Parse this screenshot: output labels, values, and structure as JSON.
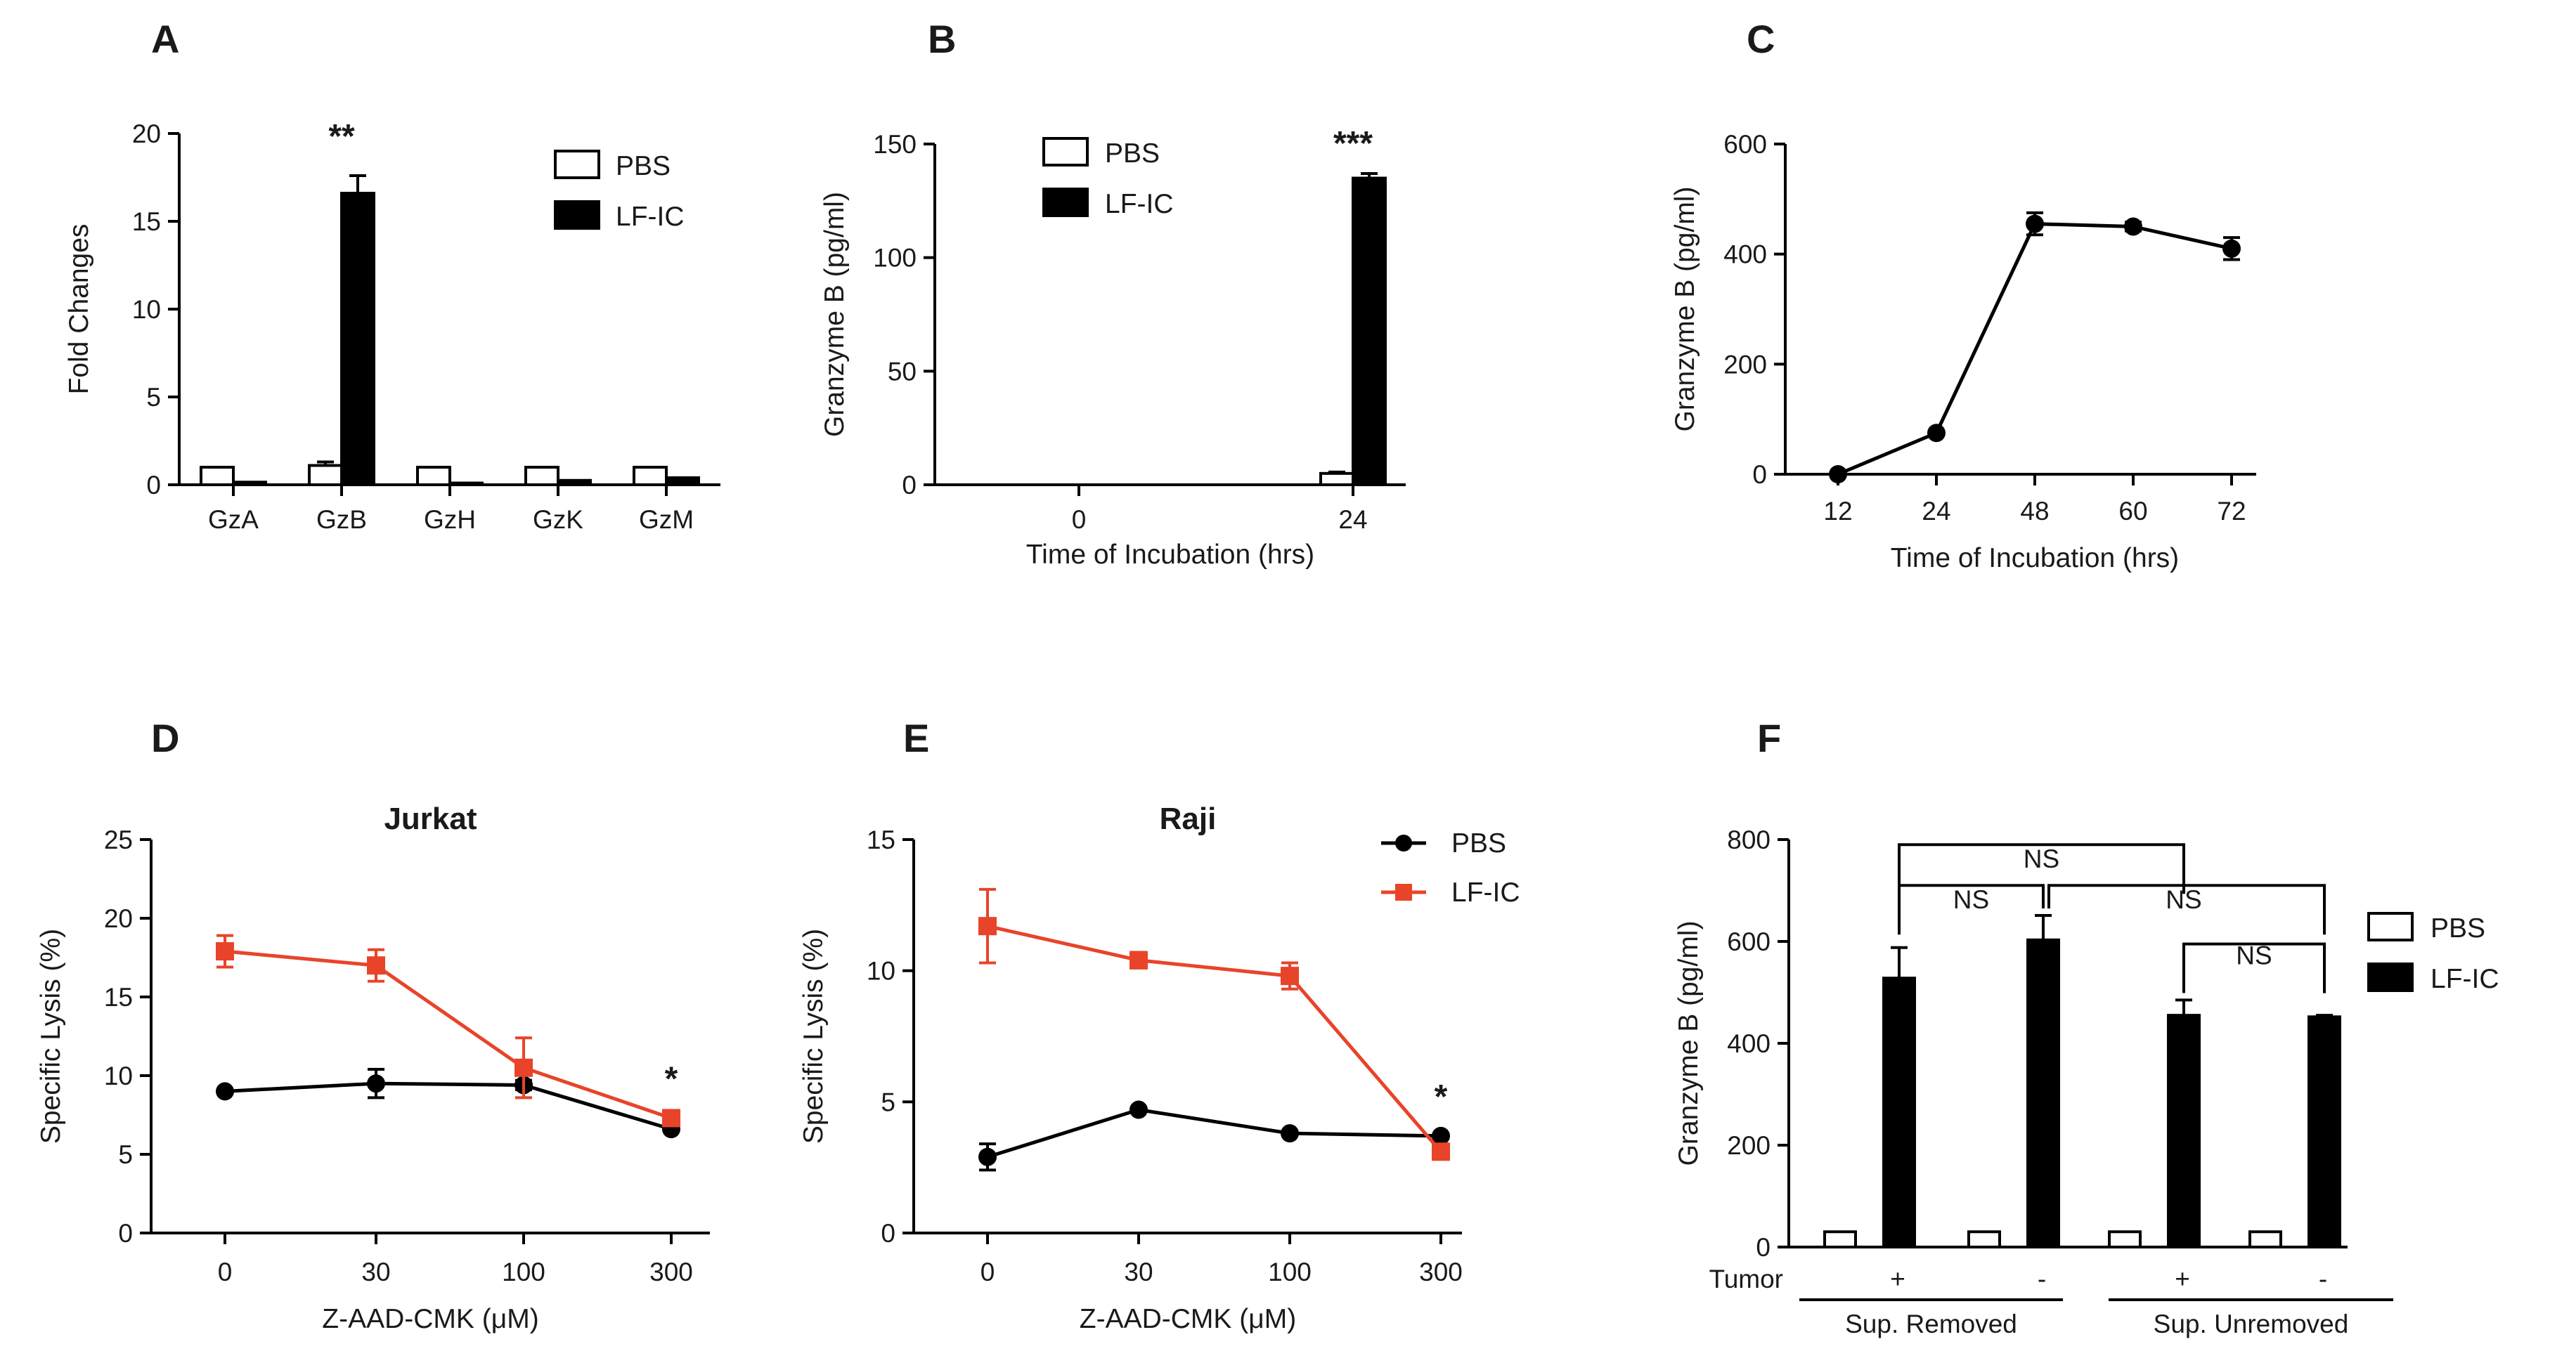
{
  "figure": {
    "panels": [
      {
        "id": "A",
        "letter": "A"
      },
      {
        "id": "B",
        "letter": "B"
      },
      {
        "id": "C",
        "letter": "C"
      },
      {
        "id": "D",
        "letter": "D"
      },
      {
        "id": "E",
        "letter": "E"
      },
      {
        "id": "F",
        "letter": "F"
      }
    ]
  },
  "colors": {
    "pbs": "#ffffff",
    "lfic": "#000000",
    "line_black": "#000000",
    "line_red": "#e8442a"
  },
  "chart_data": [
    {
      "id": "A",
      "type": "bar",
      "title": "",
      "xlabel": "",
      "ylabel": "Fold Changes",
      "ylim": [
        0,
        20
      ],
      "yticks": [
        0,
        5,
        10,
        15,
        20
      ],
      "categories": [
        "GzA",
        "GzB",
        "GzH",
        "GzK",
        "GzM"
      ],
      "series": [
        {
          "name": "PBS",
          "values": [
            1.0,
            1.1,
            1.0,
            1.0,
            1.0
          ],
          "errors": [
            0.05,
            0.2,
            0.05,
            0.05,
            0.05
          ]
        },
        {
          "name": "LF-IC",
          "values": [
            0.15,
            16.6,
            0.1,
            0.25,
            0.4
          ],
          "errors": [
            0.03,
            1.0,
            0.03,
            0.05,
            0.05
          ]
        }
      ],
      "annotations": [
        {
          "category": "GzB",
          "text": "**"
        }
      ]
    },
    {
      "id": "B",
      "type": "bar",
      "title": "",
      "xlabel": "Time of Incubation (hrs)",
      "ylabel": "Granzyme B (pg/ml)",
      "ylim": [
        0,
        150
      ],
      "yticks": [
        0,
        50,
        100,
        150
      ],
      "categories": [
        "0",
        "24"
      ],
      "series": [
        {
          "name": "PBS",
          "values": [
            0,
            5
          ],
          "errors": [
            0,
            0.6
          ]
        },
        {
          "name": "LF-IC",
          "values": [
            0,
            135
          ],
          "errors": [
            0,
            2
          ]
        }
      ],
      "annotations": [
        {
          "category": "24",
          "text": "***"
        }
      ]
    },
    {
      "id": "C",
      "type": "line",
      "title": "",
      "xlabel": "Time of Incubation (hrs)",
      "ylabel": "Granzyme B (pg/ml)",
      "ylim": [
        0,
        600
      ],
      "yticks": [
        0,
        200,
        400,
        600
      ],
      "x": [
        "12",
        "24",
        "48",
        "60",
        "72"
      ],
      "series": [
        {
          "name": "Granzyme B",
          "values": [
            0,
            75,
            455,
            450,
            410
          ],
          "errors": [
            0,
            5,
            20,
            8,
            20
          ]
        }
      ]
    },
    {
      "id": "D",
      "type": "line",
      "title": "Jurkat",
      "xlabel": "Z-AAD-CMK (μM)",
      "ylabel": "Specific Lysis (%)",
      "ylim": [
        0,
        25
      ],
      "yticks": [
        0,
        5,
        10,
        15,
        20,
        25
      ],
      "x": [
        "0",
        "30",
        "100",
        "300"
      ],
      "series": [
        {
          "name": "PBS",
          "values": [
            9.0,
            9.5,
            9.4,
            6.6
          ],
          "errors": [
            0.2,
            0.9,
            0.3,
            0.2
          ]
        },
        {
          "name": "LF-IC",
          "values": [
            17.9,
            17.0,
            10.5,
            7.3
          ],
          "errors": [
            1.0,
            1.0,
            1.9,
            0.4
          ]
        }
      ],
      "annotations": [
        {
          "x": "300",
          "text": "*"
        }
      ]
    },
    {
      "id": "E",
      "type": "line",
      "title": "Raji",
      "xlabel": "Z-AAD-CMK (μM)",
      "ylabel": "Specific Lysis (%)",
      "ylim": [
        0,
        15
      ],
      "yticks": [
        0,
        5,
        10,
        15
      ],
      "x": [
        "0",
        "30",
        "100",
        "300"
      ],
      "series": [
        {
          "name": "PBS",
          "values": [
            2.9,
            4.7,
            3.8,
            3.7
          ],
          "errors": [
            0.5,
            0.1,
            0.1,
            0.1
          ]
        },
        {
          "name": "LF-IC",
          "values": [
            11.7,
            10.4,
            9.8,
            3.1
          ],
          "errors": [
            1.4,
            0.3,
            0.5,
            0.2
          ]
        }
      ],
      "annotations": [
        {
          "x": "300",
          "text": "*"
        }
      ]
    },
    {
      "id": "F",
      "type": "bar",
      "title": "",
      "xlabel": "",
      "ylabel": "Granzyme B (pg/ml)",
      "ylim": [
        0,
        800
      ],
      "yticks": [
        0,
        200,
        400,
        600,
        800
      ],
      "row_label": "Tumor",
      "categories": [
        "+",
        "-",
        "+",
        "-"
      ],
      "groups": [
        "Sup. Removed",
        "Sup. Unremoved"
      ],
      "series": [
        {
          "name": "PBS",
          "values": [
            30,
            30,
            30,
            30
          ],
          "errors": [
            2,
            2,
            2,
            2
          ]
        },
        {
          "name": "LF-IC",
          "values": [
            528,
            603,
            455,
            452
          ],
          "errors": [
            60,
            48,
            30,
            3
          ]
        }
      ],
      "annotations": [
        {
          "from": 0,
          "to": 1,
          "text": "NS"
        },
        {
          "from": 0,
          "to": 2,
          "text": "NS"
        },
        {
          "from": 1,
          "to": 3,
          "text": "NS"
        },
        {
          "from": 2,
          "to": 3,
          "text": "NS"
        }
      ]
    }
  ]
}
